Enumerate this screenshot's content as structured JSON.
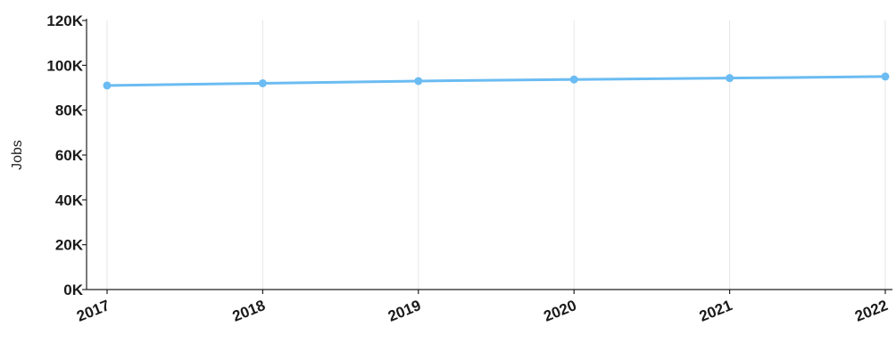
{
  "chart_data": {
    "type": "line",
    "title": "",
    "xlabel": "",
    "ylabel": "Jobs",
    "categories": [
      "2017",
      "2018",
      "2019",
      "2020",
      "2021",
      "2022"
    ],
    "series": [
      {
        "values": [
          91000,
          92000,
          93000,
          93700,
          94300,
          95000
        ],
        "color": "#6bbcf2"
      }
    ],
    "ylim": [
      0,
      120000
    ],
    "y_ticks": [
      {
        "value": 0,
        "label": "0K"
      },
      {
        "value": 20000,
        "label": "20K"
      },
      {
        "value": 40000,
        "label": "40K"
      },
      {
        "value": 60000,
        "label": "60K"
      },
      {
        "value": 80000,
        "label": "80K"
      },
      {
        "value": 100000,
        "label": "100K"
      },
      {
        "value": 120000,
        "label": "120K"
      }
    ],
    "grid": {
      "vertical": true,
      "horizontal": false
    },
    "legend": "none"
  }
}
